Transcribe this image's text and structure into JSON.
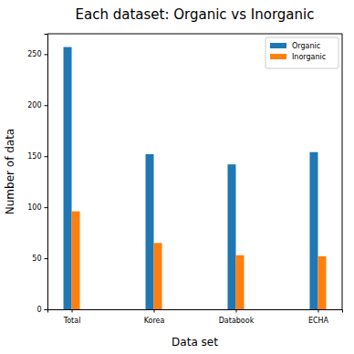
{
  "chart_data": {
    "type": "bar",
    "title": "Each dataset: Organic vs Inorganic",
    "x_label": "Data set",
    "y_label": "Number of data",
    "categories": [
      "Total",
      "Korea",
      "Databook",
      "ECHA"
    ],
    "series": [
      {
        "name": "Organic",
        "color": "#1f77b4",
        "values": [
          257,
          152,
          142,
          154
        ]
      },
      {
        "name": "Inorganic",
        "color": "#ff7f0e",
        "values": [
          96,
          65,
          53,
          52
        ]
      }
    ],
    "ylim": [
      0,
      270
    ],
    "yticks": [
      0,
      50,
      100,
      150,
      200,
      250
    ],
    "legend": "upper right",
    "grid": false
  }
}
